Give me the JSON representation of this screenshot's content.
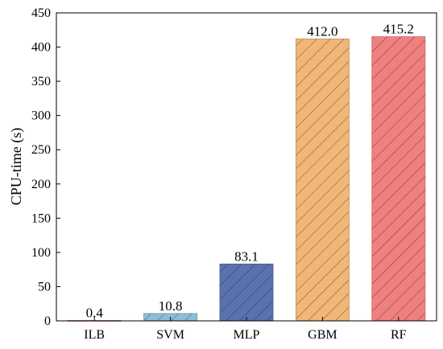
{
  "chart_data": {
    "type": "bar",
    "title": "",
    "xlabel": "",
    "ylabel": "CPU-time (s)",
    "categories": [
      "ILB",
      "SVM",
      "MLP",
      "GBM",
      "RF"
    ],
    "values": [
      0.4,
      10.8,
      83.1,
      412.0,
      415.2
    ],
    "value_labels": [
      "0.4",
      "10.8",
      "83.1",
      "412.0",
      "415.2"
    ],
    "ylim": [
      0,
      450
    ],
    "yticks": [
      0,
      50,
      100,
      150,
      200,
      250,
      300,
      350,
      400,
      450
    ],
    "grid": false,
    "legend": "none",
    "bar_style": "diagonal hatch",
    "colors": [
      "#b22d2d",
      "#8fbcd9",
      "#5b72b0",
      "#f2b678",
      "#f08080"
    ]
  }
}
